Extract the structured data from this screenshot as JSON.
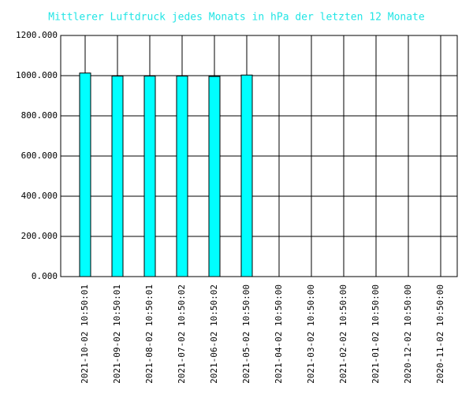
{
  "chart_data": {
    "type": "bar",
    "title": "Mittlerer Luftdruck jedes Monats in hPa der letzten 12 Monate",
    "categories": [
      "2021-10-02 10:50:01",
      "2021-09-02 10:50:01",
      "2021-08-02 10:50:01",
      "2021-07-02 10:50:02",
      "2021-06-02 10:50:02",
      "2021-05-02 10:50:00",
      "2021-04-02 10:50:00",
      "2021-03-02 10:50:00",
      "2021-02-02 10:50:00",
      "2021-01-02 10:50:00",
      "2020-12-02 10:50:00",
      "2020-11-02 10:50:00"
    ],
    "values": [
      1013,
      998,
      998,
      998,
      996,
      1003,
      null,
      null,
      null,
      null,
      null,
      null
    ],
    "color": "#00ffff",
    "ylim": [
      0,
      1200
    ],
    "yticks": [
      {
        "value": 0,
        "label": "0.000"
      },
      {
        "value": 200,
        "label": "200.000"
      },
      {
        "value": 400,
        "label": "400.000"
      },
      {
        "value": 600,
        "label": "600.000"
      },
      {
        "value": 800,
        "label": "800.000"
      },
      {
        "value": 1000,
        "label": "1000.000"
      },
      {
        "value": 1200,
        "label": "1200.000"
      }
    ],
    "grid": true
  }
}
